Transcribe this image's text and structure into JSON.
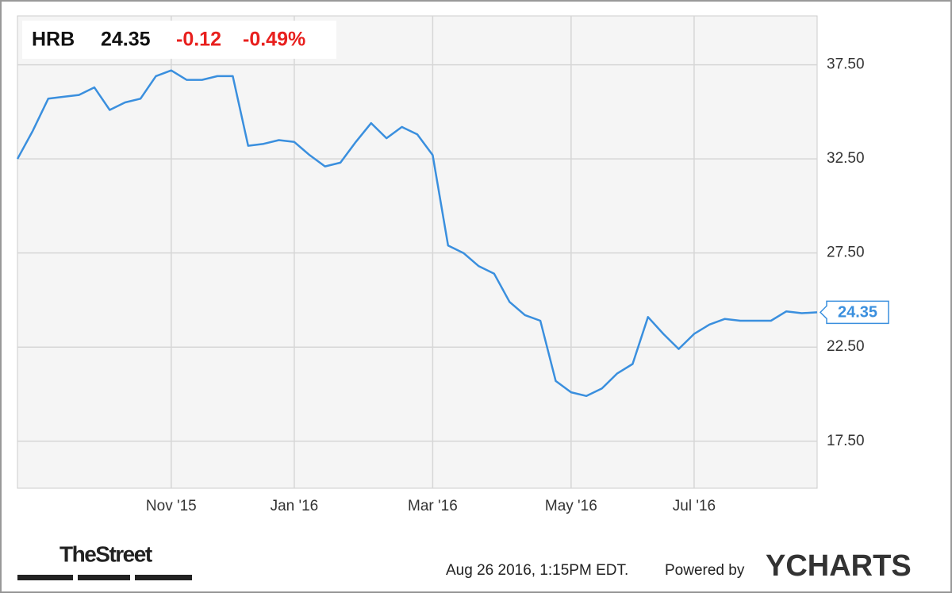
{
  "chart_data": {
    "type": "line",
    "quote": {
      "symbol": "HRB",
      "change": -0.12,
      "change_pct": "-0.49%"
    },
    "categories": [
      null,
      null,
      null,
      null,
      null,
      null,
      null,
      null,
      null,
      null,
      "Nov '15",
      null,
      null,
      null,
      null,
      null,
      null,
      null,
      "Jan '16",
      null,
      null,
      null,
      null,
      null,
      null,
      null,
      null,
      "Mar '16",
      null,
      null,
      null,
      null,
      null,
      null,
      null,
      null,
      "May '16",
      null,
      null,
      null,
      null,
      null,
      null,
      null,
      "Jul '16",
      null,
      null,
      null,
      null,
      null,
      null,
      null,
      null
    ],
    "series": [
      {
        "name": "HRB",
        "color": "#3a8fde",
        "values": [
          32.5,
          34.0,
          35.7,
          35.8,
          35.9,
          36.3,
          35.1,
          35.5,
          35.7,
          36.9,
          37.2,
          36.7,
          36.7,
          36.9,
          36.9,
          33.2,
          33.3,
          33.5,
          33.4,
          32.7,
          32.1,
          32.3,
          33.4,
          34.4,
          33.6,
          34.2,
          33.8,
          32.7,
          27.9,
          27.5,
          26.8,
          26.4,
          24.9,
          24.2,
          23.9,
          20.7,
          20.1,
          19.9,
          20.3,
          21.1,
          21.6,
          24.1,
          23.2,
          22.4,
          23.2,
          23.7,
          24.0,
          23.9,
          23.9,
          23.9,
          24.4,
          24.3,
          24.35
        ]
      }
    ],
    "ylim": [
      15,
      40.1
    ],
    "yticks": [
      {
        "value": 17.5,
        "label": "17.50"
      },
      {
        "value": 22.5,
        "label": "22.50"
      },
      {
        "value": 27.5,
        "label": "27.50"
      },
      {
        "value": 32.5,
        "label": "32.50"
      },
      {
        "value": 37.5,
        "label": "37.50"
      }
    ],
    "grid": true,
    "footer": {
      "brand": "TheStreet",
      "timestamp": "Aug 26 2016, 1:15PM EDT.",
      "powered_by": "Powered by",
      "logo": "YCHARTS"
    }
  }
}
